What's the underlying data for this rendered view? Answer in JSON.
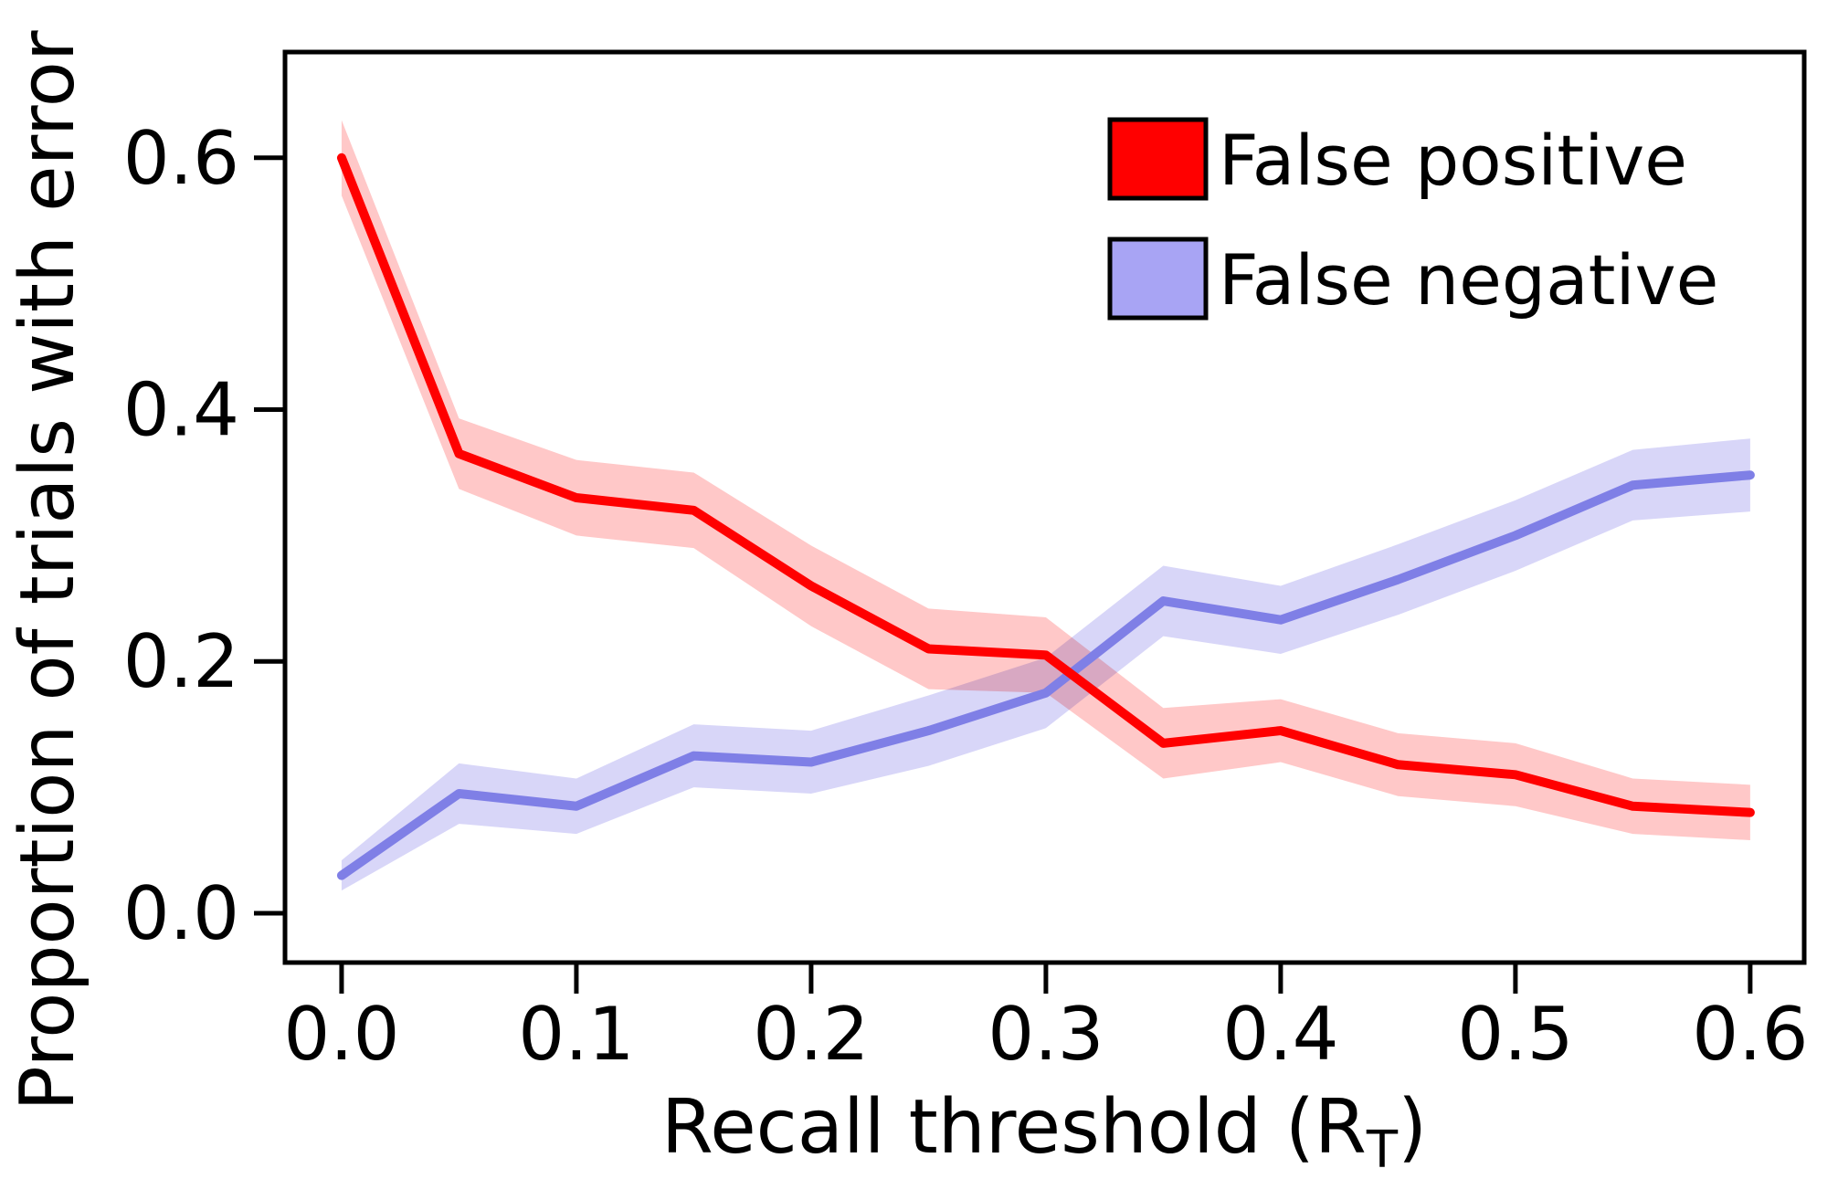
{
  "figure": {
    "background": "#ffffff",
    "axis_color": "#000000"
  },
  "chart_data": {
    "type": "line",
    "title": "",
    "xlabel": {
      "pre": "Recall threshold (R",
      "sub": "T",
      "post": ")"
    },
    "ylabel": "Proportion of trials with error",
    "xlim": [
      -0.0241,
      0.623
    ],
    "ylim": [
      -0.0392,
      0.684
    ],
    "grid": false,
    "legend_position": "upper right",
    "xticks": {
      "values": [
        0.0,
        0.1,
        0.2,
        0.3,
        0.4,
        0.5,
        0.6
      ],
      "labels": [
        "0.0",
        "0.1",
        "0.2",
        "0.3",
        "0.4",
        "0.5",
        "0.6"
      ]
    },
    "yticks": {
      "values": [
        0.0,
        0.2,
        0.4,
        0.6
      ],
      "labels": [
        "0.0",
        "0.2",
        "0.4",
        "0.6"
      ]
    },
    "x": [
      0.0,
      0.05,
      0.1,
      0.15,
      0.2,
      0.25,
      0.3,
      0.35,
      0.4,
      0.45,
      0.5,
      0.55,
      0.6
    ],
    "series": [
      {
        "name": "False positive",
        "color": "#ff0000",
        "band_color": "#ffc8c8",
        "legend_color": "#ff0000",
        "values": [
          0.6,
          0.365,
          0.33,
          0.32,
          0.26,
          0.21,
          0.205,
          0.135,
          0.145,
          0.118,
          0.11,
          0.085,
          0.08
        ],
        "upper": [
          0.63,
          0.393,
          0.36,
          0.35,
          0.292,
          0.242,
          0.235,
          0.163,
          0.17,
          0.143,
          0.135,
          0.107,
          0.102
        ],
        "lower": [
          0.57,
          0.337,
          0.3,
          0.29,
          0.228,
          0.178,
          0.175,
          0.107,
          0.12,
          0.093,
          0.085,
          0.063,
          0.058
        ]
      },
      {
        "name": "False negative",
        "color": "#7f7fe6",
        "band_color": "#d8d6f8",
        "legend_color": "#a8a4f4",
        "values": [
          0.03,
          0.095,
          0.085,
          0.125,
          0.12,
          0.145,
          0.175,
          0.248,
          0.233,
          0.265,
          0.3,
          0.34,
          0.348
        ],
        "upper": [
          0.042,
          0.119,
          0.107,
          0.15,
          0.145,
          0.173,
          0.203,
          0.276,
          0.26,
          0.293,
          0.328,
          0.368,
          0.377
        ],
        "lower": [
          0.018,
          0.071,
          0.063,
          0.1,
          0.095,
          0.117,
          0.147,
          0.22,
          0.206,
          0.237,
          0.272,
          0.312,
          0.319
        ]
      }
    ]
  }
}
